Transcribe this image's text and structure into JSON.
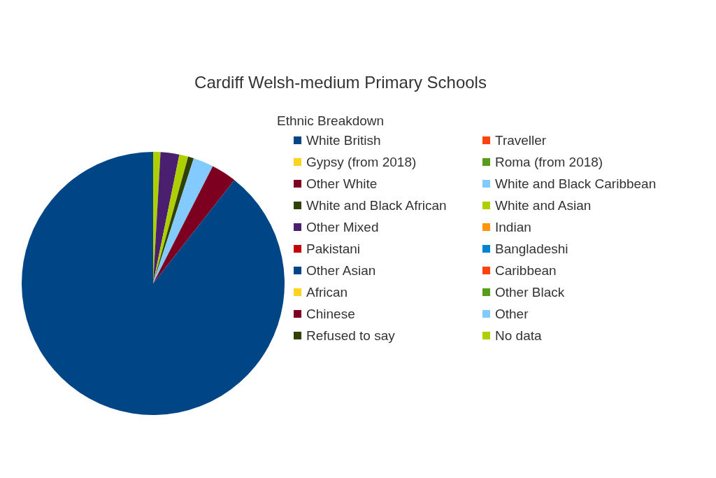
{
  "chart_data": {
    "type": "pie",
    "title": "Cardiff Welsh-medium Primary Schools",
    "legend_title": "Ethnic Breakdown",
    "legend": "right",
    "categories": [
      "White British",
      "Traveller",
      "Gypsy (from 2018)",
      "Roma (from 2018)",
      "Other White",
      "White and Black Caribbean",
      "White and Black African",
      "White and Asian",
      "Other Mixed",
      "Indian",
      "Pakistani",
      "Bangladeshi",
      "Other Asian",
      "Caribbean",
      "African",
      "Other Black",
      "Chinese",
      "Other",
      "Refused to say",
      "No data"
    ],
    "values": [
      89.4,
      0,
      0,
      0,
      3.1,
      2.5,
      0.7,
      1.1,
      2.3,
      0,
      0,
      0,
      0,
      0,
      0,
      0,
      0,
      0,
      0,
      0.9
    ],
    "colors": [
      "#004586",
      "#ff420e",
      "#ffd320",
      "#579d1c",
      "#7e0021",
      "#83caff",
      "#314004",
      "#aecf00",
      "#4b1f6f",
      "#ff950e",
      "#c5000b",
      "#0084d1",
      "#004586",
      "#ff420e",
      "#ffd320",
      "#579d1c",
      "#7e0021",
      "#83caff",
      "#314004",
      "#aecf00"
    ]
  }
}
